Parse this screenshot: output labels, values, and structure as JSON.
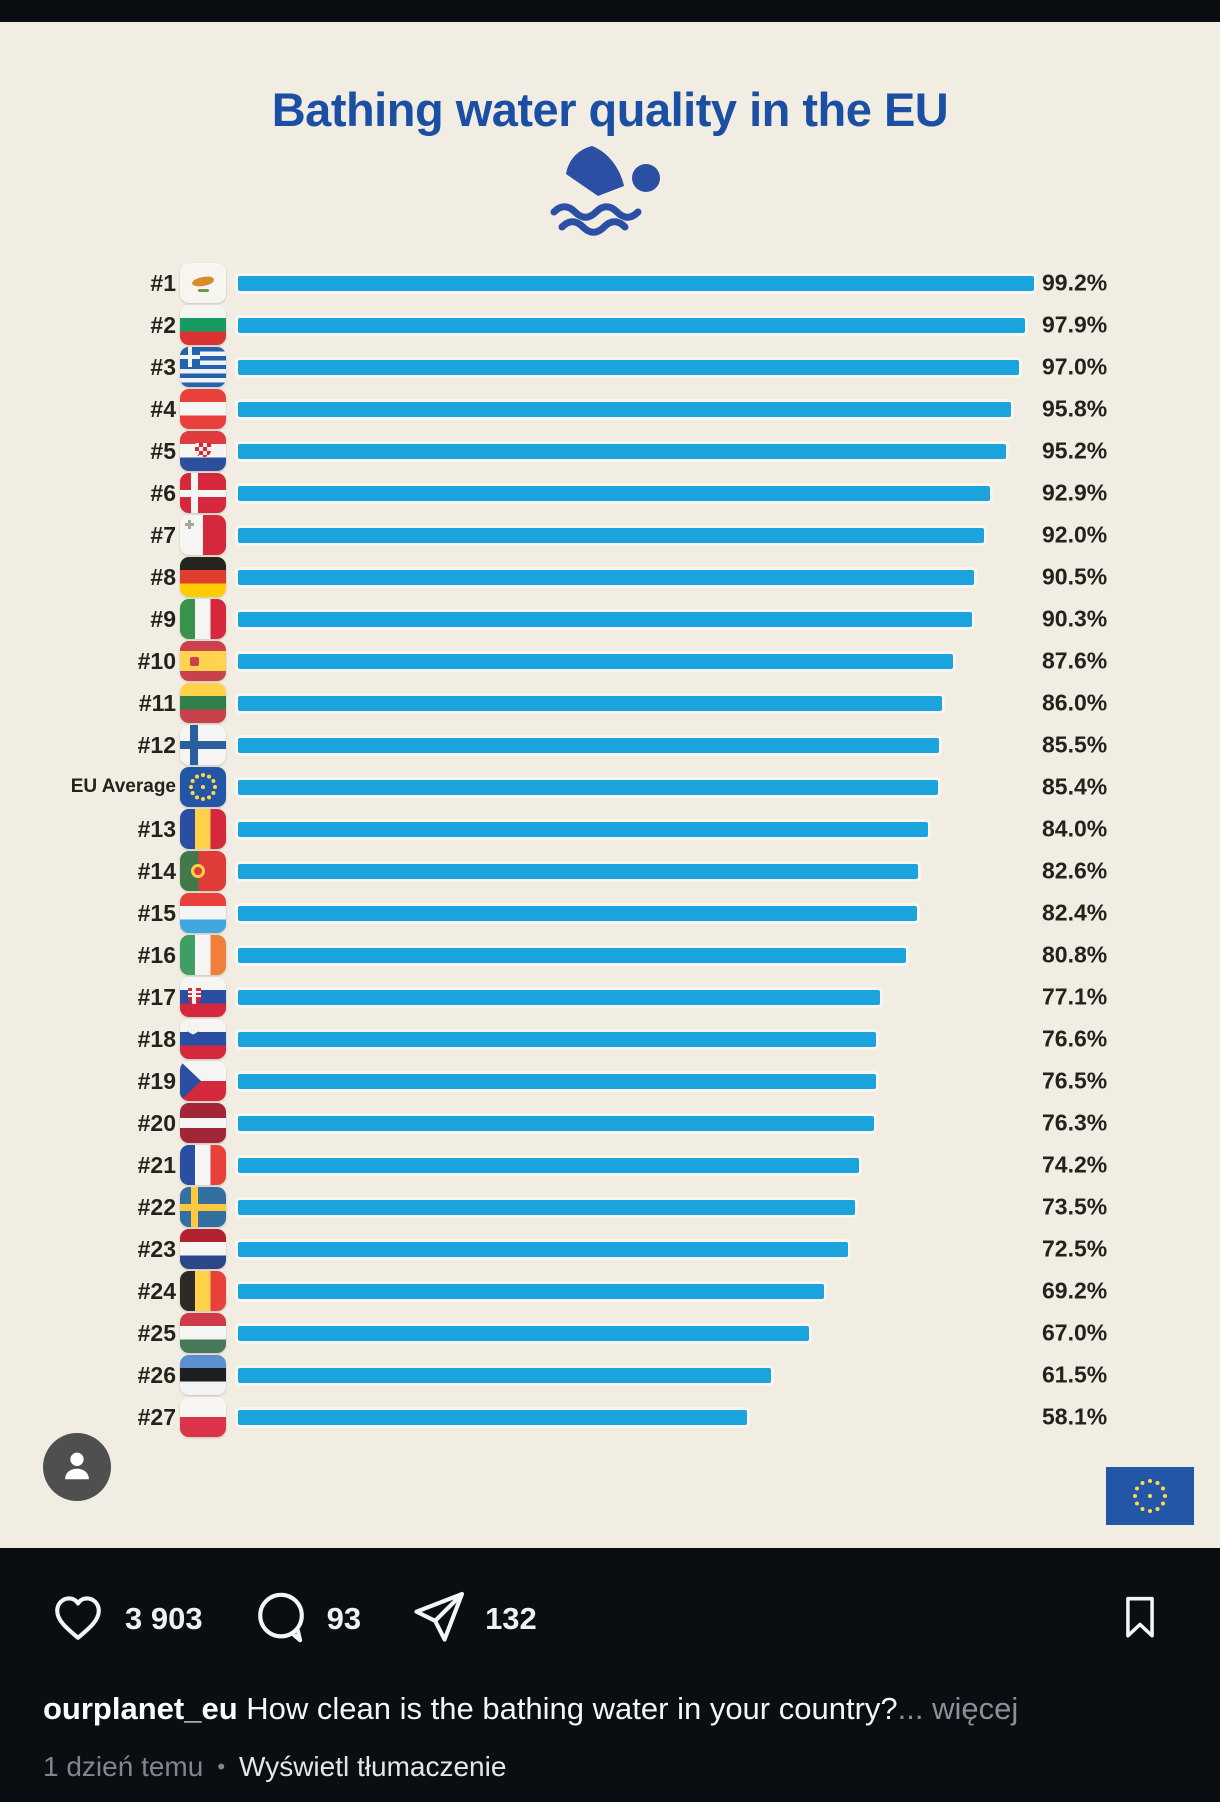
{
  "colors": {
    "bar_blue": "#1aa3dc",
    "title_blue": "#1b4fa4",
    "cream_background": "#f1ede2",
    "ig_background": "#0a0d12"
  },
  "chart_data": {
    "type": "bar",
    "orientation": "horizontal",
    "title": "Bathing water quality in the EU",
    "unit": "%",
    "value_range": [
      0,
      100
    ],
    "grid": false,
    "legend": false,
    "rows": [
      {
        "rank": "#1",
        "country": "Cyprus",
        "flag": "cy",
        "value": 99.2,
        "label": "99.2%"
      },
      {
        "rank": "#2",
        "country": "Bulgaria",
        "flag": "bg",
        "value": 97.9,
        "label": "97.9%"
      },
      {
        "rank": "#3",
        "country": "Greece",
        "flag": "gr",
        "value": 97.0,
        "label": "97.0%"
      },
      {
        "rank": "#4",
        "country": "Austria",
        "flag": "at",
        "value": 95.8,
        "label": "95.8%"
      },
      {
        "rank": "#5",
        "country": "Croatia",
        "flag": "hr",
        "value": 95.2,
        "label": "95.2%"
      },
      {
        "rank": "#6",
        "country": "Denmark",
        "flag": "dk",
        "value": 92.9,
        "label": "92.9%"
      },
      {
        "rank": "#7",
        "country": "Malta",
        "flag": "mt",
        "value": 92.0,
        "label": "92.0%"
      },
      {
        "rank": "#8",
        "country": "Germany",
        "flag": "de",
        "value": 90.5,
        "label": "90.5%"
      },
      {
        "rank": "#9",
        "country": "Italy",
        "flag": "it",
        "value": 90.3,
        "label": "90.3%"
      },
      {
        "rank": "#10",
        "country": "Spain",
        "flag": "es",
        "value": 87.6,
        "label": "87.6%"
      },
      {
        "rank": "#11",
        "country": "Lithuania",
        "flag": "lt",
        "value": 86.0,
        "label": "86.0%"
      },
      {
        "rank": "#12",
        "country": "Finland",
        "flag": "fi",
        "value": 85.5,
        "label": "85.5%"
      },
      {
        "rank": "EU Average",
        "country": "European Union",
        "flag": "eu",
        "value": 85.4,
        "label": "85.4%",
        "is_average": true
      },
      {
        "rank": "#13",
        "country": "Romania",
        "flag": "ro",
        "value": 84.0,
        "label": "84.0%"
      },
      {
        "rank": "#14",
        "country": "Portugal",
        "flag": "pt",
        "value": 82.6,
        "label": "82.6%"
      },
      {
        "rank": "#15",
        "country": "Luxembourg",
        "flag": "lu",
        "value": 82.4,
        "label": "82.4%"
      },
      {
        "rank": "#16",
        "country": "Ireland",
        "flag": "ie",
        "value": 80.8,
        "label": "80.8%"
      },
      {
        "rank": "#17",
        "country": "Slovakia",
        "flag": "sk",
        "value": 77.1,
        "label": "77.1%"
      },
      {
        "rank": "#18",
        "country": "Slovenia",
        "flag": "si",
        "value": 76.6,
        "label": "76.6%"
      },
      {
        "rank": "#19",
        "country": "Czechia",
        "flag": "cz",
        "value": 76.5,
        "label": "76.5%"
      },
      {
        "rank": "#20",
        "country": "Latvia",
        "flag": "lv",
        "value": 76.3,
        "label": "76.3%"
      },
      {
        "rank": "#21",
        "country": "France",
        "flag": "fr",
        "value": 74.2,
        "label": "74.2%"
      },
      {
        "rank": "#22",
        "country": "Sweden",
        "flag": "se",
        "value": 73.5,
        "label": "73.5%"
      },
      {
        "rank": "#23",
        "country": "Netherlands",
        "flag": "nl",
        "value": 72.5,
        "label": "72.5%"
      },
      {
        "rank": "#24",
        "country": "Belgium",
        "flag": "be",
        "value": 69.2,
        "label": "69.2%"
      },
      {
        "rank": "#25",
        "country": "Hungary",
        "flag": "hu",
        "value": 67.0,
        "label": "67.0%"
      },
      {
        "rank": "#26",
        "country": "Estonia",
        "flag": "ee",
        "value": 61.5,
        "label": "61.5%"
      },
      {
        "rank": "#27",
        "country": "Poland",
        "flag": "pl",
        "value": 58.1,
        "label": "58.1%"
      }
    ]
  },
  "instagram": {
    "likes": "3 903",
    "comments": "93",
    "shares": "132",
    "username": "ourplanet_eu",
    "caption": "How clean is the bathing water in your country?",
    "ellipsis": "...",
    "more_label": "więcej",
    "timestamp": "1 dzień temu",
    "separator": "•",
    "translate_label": "Wyświetl tłumaczenie"
  }
}
